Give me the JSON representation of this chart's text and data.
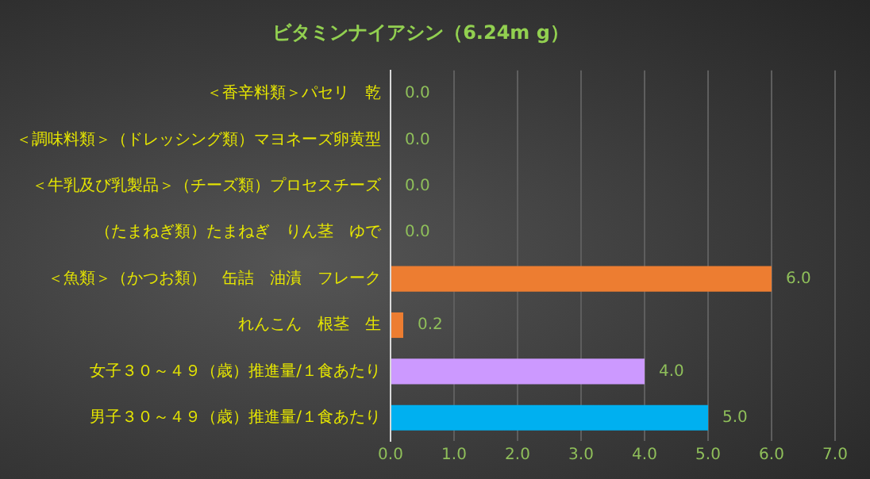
{
  "chart_data": {
    "type": "bar",
    "orientation": "horizontal",
    "title": "ビタミンナイアシン（6.24m g）",
    "categories": [
      "＜香辛料類＞パセリ　乾",
      "＜調味料類＞（ドレッシング類）マヨネーズ卵黄型",
      "＜牛乳及び乳製品＞（チーズ類）プロセスチーズ",
      "（たまねぎ類）たまねぎ　りん茎　ゆで",
      "＜魚類＞（かつお類）　缶詰　油漬　フレーク",
      "れんこん　根茎　生",
      "女子３０～４９（歳）推進量/１食あたり",
      "男子３０～４９（歳）推進量/１食あたり"
    ],
    "values": [
      0,
      0,
      0,
      0,
      6,
      0.2,
      4,
      5
    ],
    "colors": [
      "#ed7d31",
      "#ed7d31",
      "#ed7d31",
      "#ed7d31",
      "#ed7d31",
      "#ed7d31",
      "#cc99ff",
      "#00b0f0"
    ],
    "value_labels": [
      "0.0",
      "0.0",
      "0.0",
      "0.0",
      "6.0",
      "0.2",
      "4.0",
      "5.0"
    ],
    "xlim": [
      0,
      7
    ],
    "xticks": [
      {
        "value": 0,
        "label": "0.0"
      },
      {
        "value": 1,
        "label": "1.0"
      },
      {
        "value": 2,
        "label": "2.0"
      },
      {
        "value": 3,
        "label": "3.0"
      },
      {
        "value": 4,
        "label": "4.0"
      },
      {
        "value": 5,
        "label": "5.0"
      },
      {
        "value": 6,
        "label": "6.0"
      },
      {
        "value": 7,
        "label": "7.0"
      }
    ],
    "grid": "x",
    "legend": false
  }
}
